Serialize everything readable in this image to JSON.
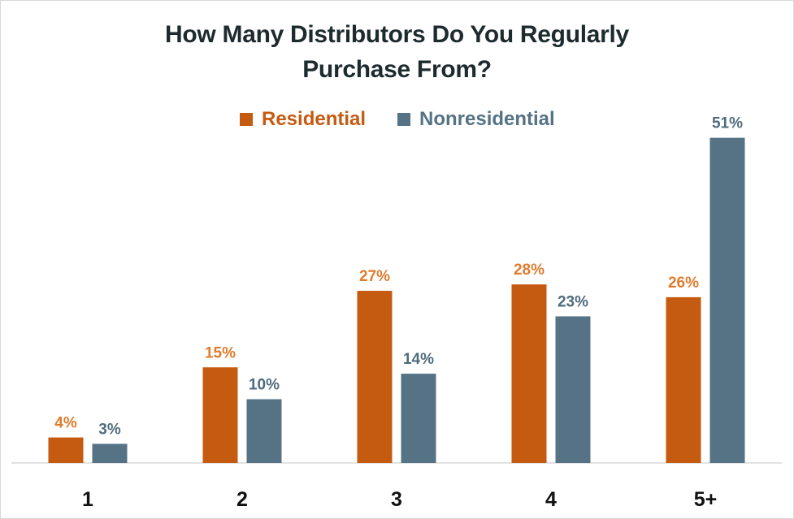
{
  "chart_data": {
    "type": "bar",
    "title_line1": "How Many Distributors Do You Regularly",
    "title_line2": "Purchase From?",
    "categories": [
      "1",
      "2",
      "3",
      "4",
      "5+"
    ],
    "series": [
      {
        "name": "Residential",
        "color": "#c55a11",
        "label_color": "#e07b2c",
        "values": [
          4,
          15,
          27,
          28,
          26
        ],
        "labels": [
          "4%",
          "15%",
          "27%",
          "28%",
          "26%"
        ]
      },
      {
        "name": "Nonresidential",
        "color": "#557385",
        "label_color": "#4f6b7d",
        "values": [
          3,
          10,
          14,
          23,
          51
        ],
        "labels": [
          "3%",
          "10%",
          "14%",
          "23%",
          "51%"
        ]
      }
    ],
    "ylim": [
      0,
      51
    ],
    "grid": false,
    "legend_position": "top-center"
  }
}
